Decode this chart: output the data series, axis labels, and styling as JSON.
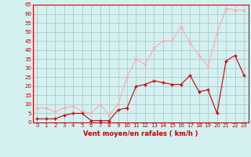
{
  "x": [
    0,
    1,
    2,
    3,
    4,
    5,
    6,
    7,
    8,
    9,
    10,
    11,
    12,
    13,
    14,
    15,
    16,
    17,
    18,
    19,
    20,
    21,
    22,
    23
  ],
  "wind_avg": [
    2,
    2,
    2,
    4,
    5,
    5,
    1,
    1,
    1,
    7,
    8,
    20,
    21,
    23,
    22,
    21,
    21,
    26,
    17,
    18,
    5,
    34,
    37,
    26
  ],
  "wind_gust": [
    8,
    8,
    6,
    8,
    9,
    6,
    5,
    10,
    4,
    10,
    25,
    35,
    32,
    41,
    45,
    45,
    53,
    44,
    37,
    31,
    49,
    63,
    62,
    62
  ],
  "wind_avg_color": "#cc0000",
  "wind_gust_color": "#ffaaaa",
  "bg_color": "#d4f0f0",
  "grid_color": "#aacccc",
  "xlabel": "Vent moyen/en rafales ( km/h )",
  "ylim": [
    0,
    65
  ],
  "yticks": [
    0,
    5,
    10,
    15,
    20,
    25,
    30,
    35,
    40,
    45,
    50,
    55,
    60,
    65
  ],
  "xlim": [
    -0.5,
    23.5
  ],
  "xticks": [
    0,
    1,
    2,
    3,
    4,
    5,
    6,
    7,
    8,
    9,
    10,
    11,
    12,
    13,
    14,
    15,
    16,
    17,
    18,
    19,
    20,
    21,
    22,
    23
  ],
  "tick_labelsize": 5,
  "xlabel_fontsize": 6
}
